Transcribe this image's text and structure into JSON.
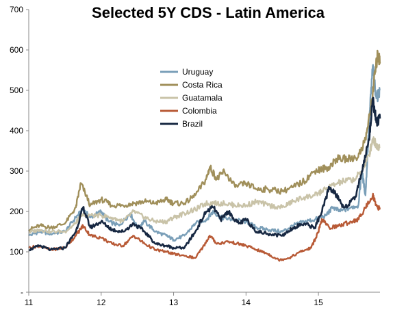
{
  "chart_data": {
    "type": "line",
    "title": "Selected 5Y CDS - Latin America",
    "xlabel": "",
    "ylabel": "",
    "xlim": [
      11,
      15.85
    ],
    "ylim": [
      0,
      700
    ],
    "y_ticks": [
      {
        "value": 0,
        "label": "-"
      },
      {
        "value": 100,
        "label": "100"
      },
      {
        "value": 200,
        "label": "200"
      },
      {
        "value": 300,
        "label": "300"
      },
      {
        "value": 400,
        "label": "400"
      },
      {
        "value": 500,
        "label": "500"
      },
      {
        "value": 600,
        "label": "600"
      },
      {
        "value": 700,
        "label": "700"
      }
    ],
    "x_ticks": [
      {
        "value": 11,
        "label": "11"
      },
      {
        "value": 12,
        "label": "12"
      },
      {
        "value": 13,
        "label": "13"
      },
      {
        "value": 14,
        "label": "14"
      },
      {
        "value": 15,
        "label": "15"
      }
    ],
    "grid": false,
    "legend_position": "upper-center",
    "series": [
      {
        "name": "Uruguay",
        "color": "#7a9fb8",
        "points": [
          [
            11.0,
            140
          ],
          [
            11.15,
            150
          ],
          [
            11.3,
            145
          ],
          [
            11.5,
            150
          ],
          [
            11.65,
            185
          ],
          [
            11.75,
            205
          ],
          [
            11.85,
            185
          ],
          [
            12.0,
            200
          ],
          [
            12.1,
            175
          ],
          [
            12.25,
            165
          ],
          [
            12.4,
            195
          ],
          [
            12.5,
            160
          ],
          [
            12.6,
            175
          ],
          [
            12.75,
            150
          ],
          [
            12.9,
            140
          ],
          [
            13.0,
            130
          ],
          [
            13.15,
            140
          ],
          [
            13.3,
            170
          ],
          [
            13.45,
            180
          ],
          [
            13.55,
            200
          ],
          [
            13.65,
            185
          ],
          [
            13.8,
            180
          ],
          [
            14.0,
            175
          ],
          [
            14.15,
            160
          ],
          [
            14.3,
            155
          ],
          [
            14.5,
            150
          ],
          [
            14.65,
            165
          ],
          [
            14.8,
            175
          ],
          [
            14.95,
            180
          ],
          [
            15.1,
            190
          ],
          [
            15.2,
            210
          ],
          [
            15.3,
            200
          ],
          [
            15.45,
            210
          ],
          [
            15.55,
            215
          ],
          [
            15.6,
            300
          ],
          [
            15.65,
            240
          ],
          [
            15.7,
            420
          ],
          [
            15.75,
            560
          ],
          [
            15.8,
            480
          ],
          [
            15.85,
            500
          ]
        ]
      },
      {
        "name": "Costa Rica",
        "color": "#a08f5a",
        "points": [
          [
            11.0,
            155
          ],
          [
            11.15,
            165
          ],
          [
            11.3,
            160
          ],
          [
            11.5,
            170
          ],
          [
            11.65,
            210
          ],
          [
            11.72,
            270
          ],
          [
            11.85,
            215
          ],
          [
            12.0,
            230
          ],
          [
            12.15,
            215
          ],
          [
            12.3,
            215
          ],
          [
            12.45,
            220
          ],
          [
            12.6,
            225
          ],
          [
            12.75,
            220
          ],
          [
            12.9,
            230
          ],
          [
            13.0,
            220
          ],
          [
            13.15,
            220
          ],
          [
            13.3,
            240
          ],
          [
            13.45,
            280
          ],
          [
            13.5,
            310
          ],
          [
            13.6,
            280
          ],
          [
            13.7,
            300
          ],
          [
            13.85,
            260
          ],
          [
            14.0,
            270
          ],
          [
            14.15,
            255
          ],
          [
            14.3,
            255
          ],
          [
            14.5,
            250
          ],
          [
            14.65,
            260
          ],
          [
            14.8,
            275
          ],
          [
            14.95,
            300
          ],
          [
            15.05,
            305
          ],
          [
            15.15,
            310
          ],
          [
            15.25,
            330
          ],
          [
            15.4,
            330
          ],
          [
            15.55,
            335
          ],
          [
            15.65,
            380
          ],
          [
            15.72,
            450
          ],
          [
            15.78,
            540
          ],
          [
            15.82,
            590
          ],
          [
            15.85,
            570
          ]
        ]
      },
      {
        "name": "Guatamala",
        "color": "#c9c3a8",
        "points": [
          [
            11.0,
            148
          ],
          [
            11.15,
            155
          ],
          [
            11.3,
            150
          ],
          [
            11.5,
            150
          ],
          [
            11.65,
            170
          ],
          [
            11.72,
            190
          ],
          [
            11.85,
            190
          ],
          [
            12.0,
            190
          ],
          [
            12.15,
            185
          ],
          [
            12.3,
            175
          ],
          [
            12.45,
            200
          ],
          [
            12.6,
            185
          ],
          [
            12.75,
            175
          ],
          [
            12.9,
            175
          ],
          [
            13.0,
            185
          ],
          [
            13.15,
            195
          ],
          [
            13.3,
            205
          ],
          [
            13.45,
            220
          ],
          [
            13.55,
            220
          ],
          [
            13.7,
            220
          ],
          [
            13.85,
            215
          ],
          [
            14.0,
            215
          ],
          [
            14.15,
            225
          ],
          [
            14.3,
            215
          ],
          [
            14.5,
            210
          ],
          [
            14.65,
            225
          ],
          [
            14.8,
            235
          ],
          [
            14.95,
            240
          ],
          [
            15.05,
            250
          ],
          [
            15.2,
            265
          ],
          [
            15.35,
            275
          ],
          [
            15.5,
            280
          ],
          [
            15.6,
            300
          ],
          [
            15.7,
            340
          ],
          [
            15.75,
            380
          ],
          [
            15.8,
            365
          ],
          [
            15.85,
            360
          ]
        ]
      },
      {
        "name": "Colombia",
        "color": "#b85a36",
        "points": [
          [
            11.0,
            110
          ],
          [
            11.15,
            115
          ],
          [
            11.3,
            105
          ],
          [
            11.5,
            110
          ],
          [
            11.65,
            140
          ],
          [
            11.75,
            165
          ],
          [
            11.85,
            140
          ],
          [
            12.0,
            135
          ],
          [
            12.15,
            120
          ],
          [
            12.3,
            115
          ],
          [
            12.45,
            140
          ],
          [
            12.6,
            120
          ],
          [
            12.75,
            105
          ],
          [
            12.9,
            100
          ],
          [
            13.0,
            95
          ],
          [
            13.15,
            90
          ],
          [
            13.3,
            85
          ],
          [
            13.4,
            110
          ],
          [
            13.5,
            140
          ],
          [
            13.6,
            120
          ],
          [
            13.75,
            125
          ],
          [
            13.9,
            120
          ],
          [
            14.0,
            115
          ],
          [
            14.15,
            105
          ],
          [
            14.3,
            95
          ],
          [
            14.45,
            80
          ],
          [
            14.6,
            85
          ],
          [
            14.75,
            100
          ],
          [
            14.9,
            110
          ],
          [
            15.0,
            150
          ],
          [
            15.05,
            180
          ],
          [
            15.15,
            160
          ],
          [
            15.3,
            165
          ],
          [
            15.45,
            175
          ],
          [
            15.55,
            180
          ],
          [
            15.65,
            210
          ],
          [
            15.75,
            240
          ],
          [
            15.8,
            215
          ],
          [
            15.85,
            205
          ]
        ]
      },
      {
        "name": "Brazil",
        "color": "#172842",
        "points": [
          [
            11.0,
            105
          ],
          [
            11.15,
            115
          ],
          [
            11.3,
            105
          ],
          [
            11.5,
            110
          ],
          [
            11.65,
            150
          ],
          [
            11.75,
            210
          ],
          [
            11.85,
            160
          ],
          [
            12.0,
            175
          ],
          [
            12.15,
            155
          ],
          [
            12.3,
            150
          ],
          [
            12.45,
            170
          ],
          [
            12.6,
            150
          ],
          [
            12.75,
            120
          ],
          [
            12.9,
            115
          ],
          [
            13.0,
            110
          ],
          [
            13.15,
            110
          ],
          [
            13.3,
            150
          ],
          [
            13.45,
            200
          ],
          [
            13.55,
            210
          ],
          [
            13.65,
            180
          ],
          [
            13.75,
            200
          ],
          [
            13.9,
            170
          ],
          [
            14.0,
            180
          ],
          [
            14.15,
            150
          ],
          [
            14.3,
            145
          ],
          [
            14.5,
            140
          ],
          [
            14.65,
            160
          ],
          [
            14.8,
            170
          ],
          [
            14.95,
            160
          ],
          [
            15.05,
            200
          ],
          [
            15.15,
            260
          ],
          [
            15.25,
            240
          ],
          [
            15.35,
            210
          ],
          [
            15.5,
            230
          ],
          [
            15.6,
            300
          ],
          [
            15.7,
            380
          ],
          [
            15.75,
            480
          ],
          [
            15.8,
            420
          ],
          [
            15.85,
            430
          ]
        ]
      }
    ]
  }
}
